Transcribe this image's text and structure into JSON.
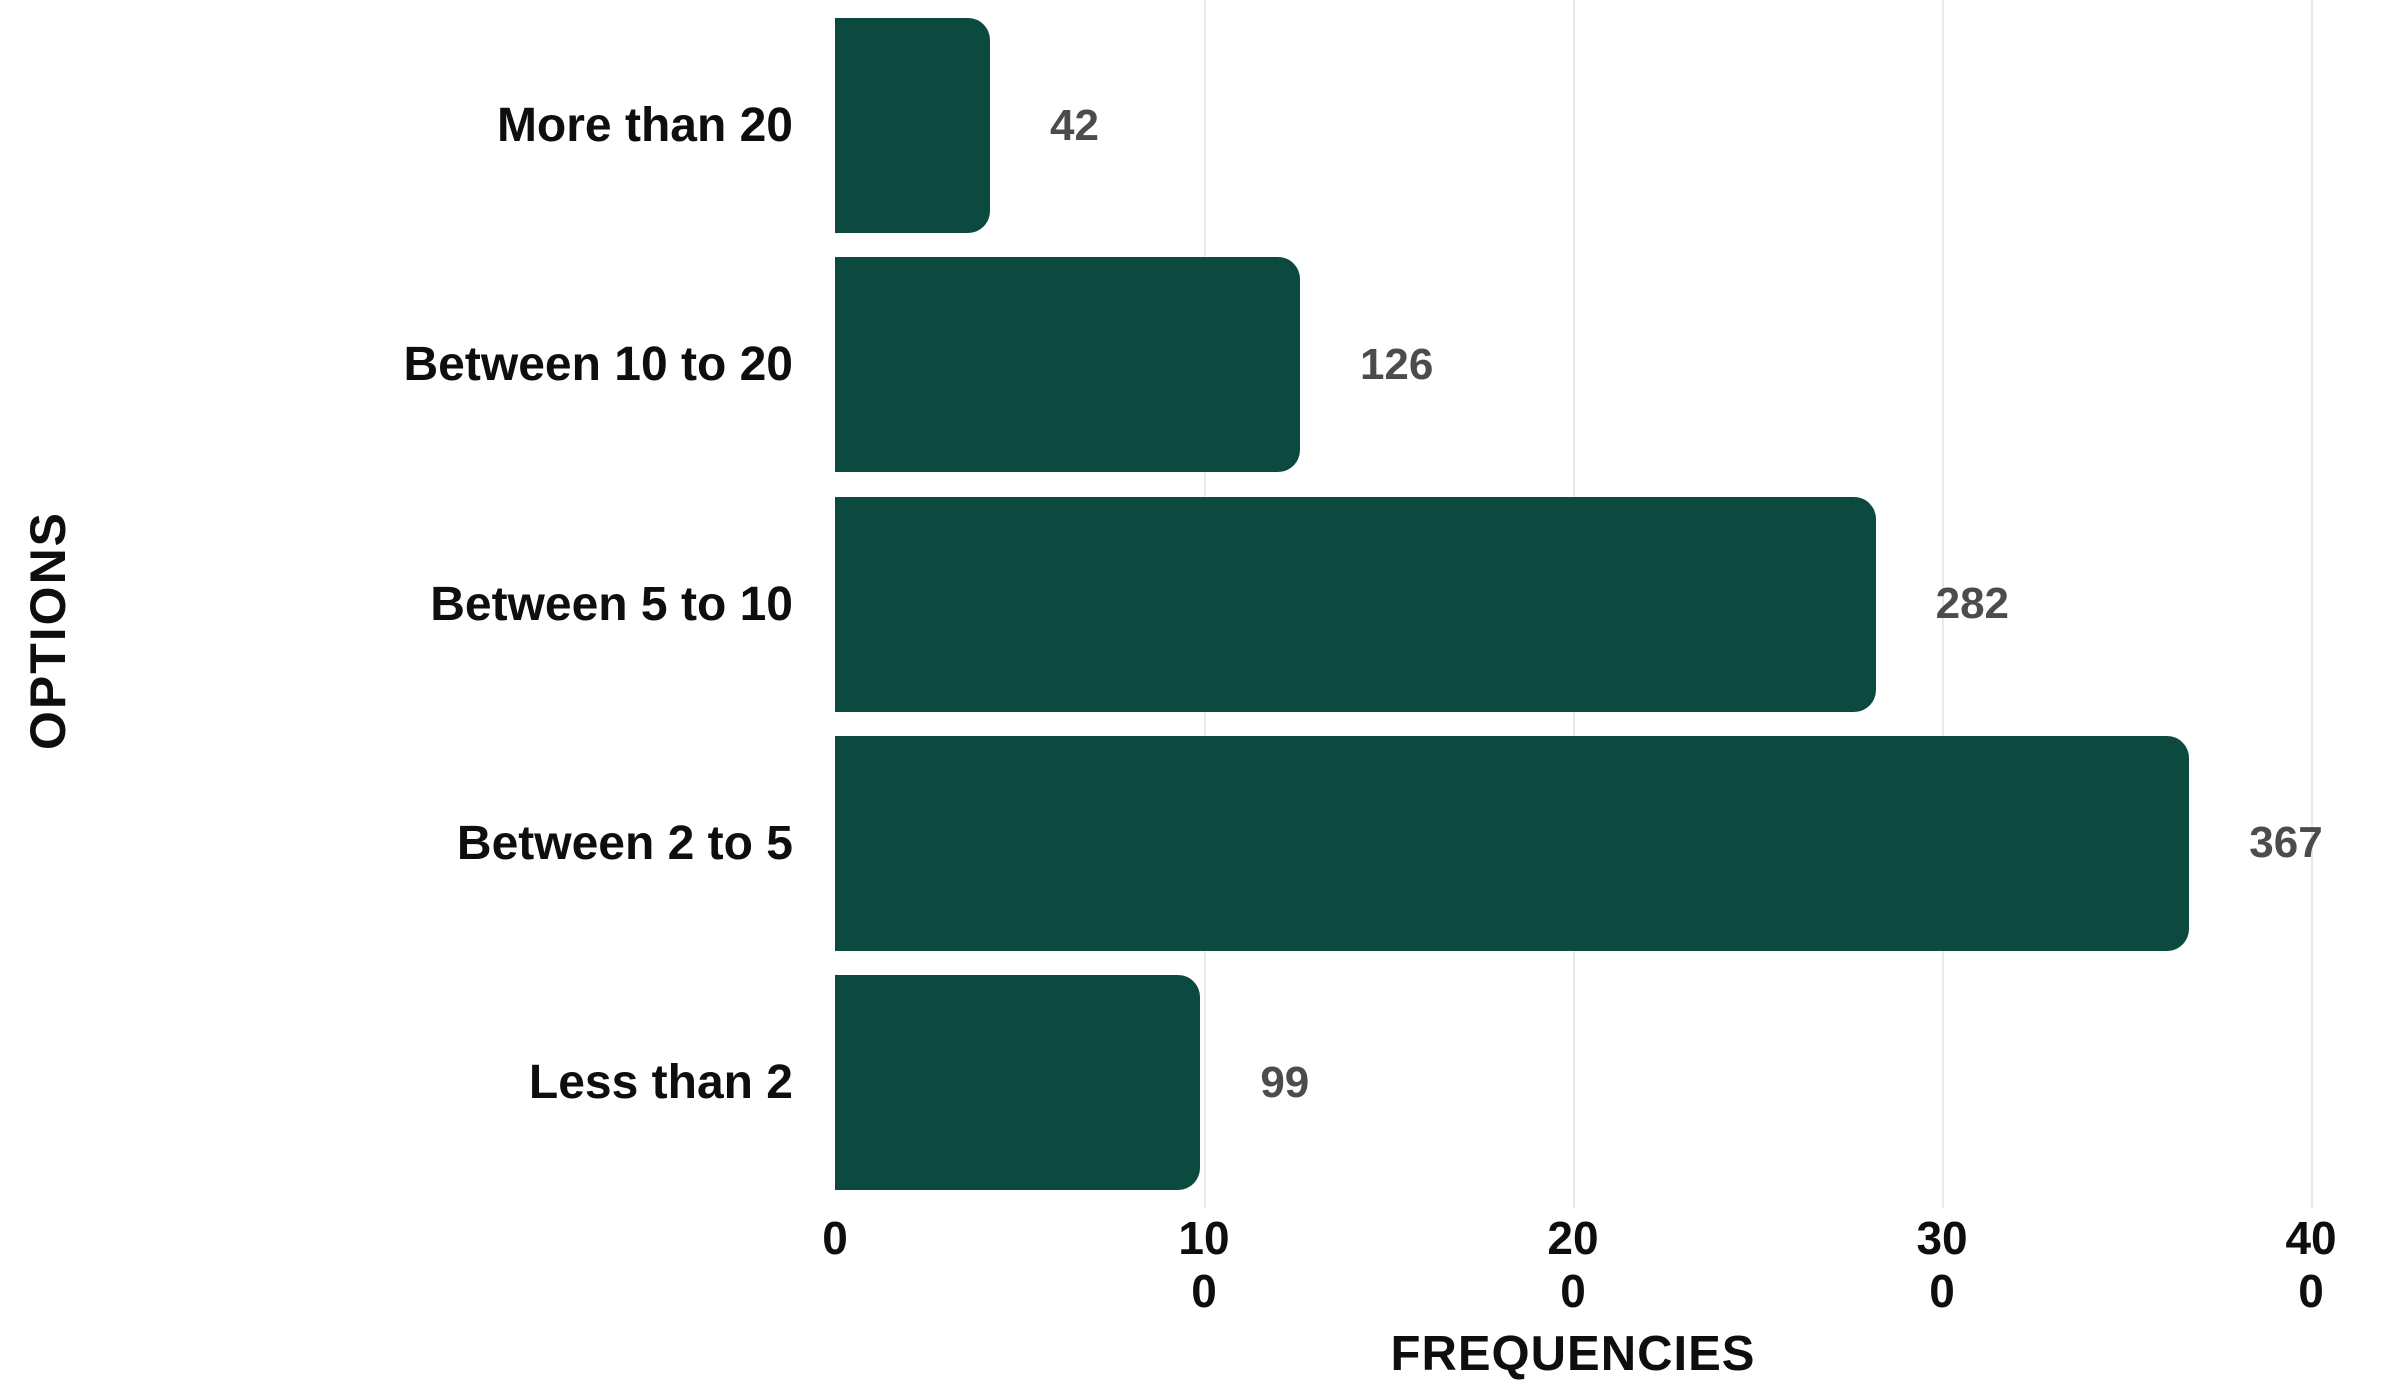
{
  "chart_data": {
    "type": "bar",
    "orientation": "horizontal",
    "title": "",
    "categories": [
      "More than 20",
      "Between 10 to 20",
      "Between 5 to 10",
      "Between 2 to 5",
      "Less than 2"
    ],
    "values": [
      42,
      126,
      282,
      367,
      99
    ],
    "value_labels": [
      "42",
      "126",
      "282",
      "367",
      "99"
    ],
    "xlabel": "FREQUENCIES",
    "ylabel": "OPTIONS",
    "xlim": [
      0,
      400
    ],
    "x_ticks": [
      0,
      100,
      200,
      300,
      400
    ],
    "x_tick_lines": [
      [
        "0"
      ],
      [
        "10",
        "0"
      ],
      [
        "20",
        "0"
      ],
      [
        "30",
        "0"
      ],
      [
        "40",
        "0"
      ]
    ],
    "grid": "vertical gridlines at ticks, none at 0",
    "legend": "none",
    "colors": {
      "bar": "#0c4a40",
      "value_label": "#4c4c4c",
      "axis_text": "#0e0e0e",
      "gridline": "#e8e8e8",
      "background": "#ffffff"
    }
  }
}
